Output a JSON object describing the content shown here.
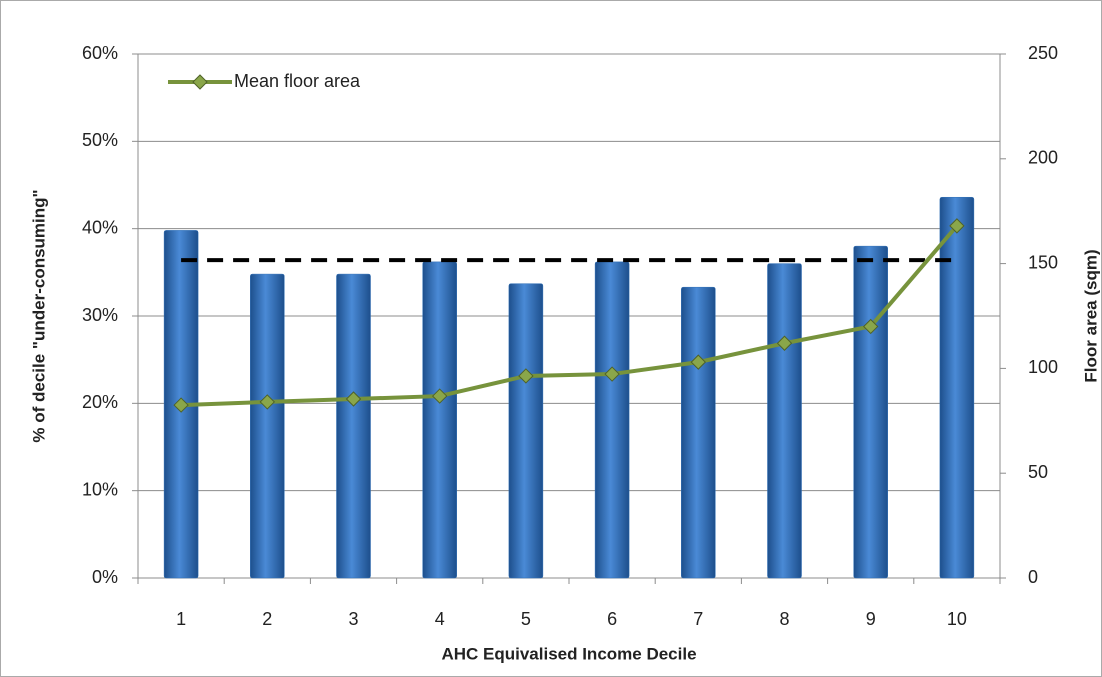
{
  "chart_data": {
    "type": "bar_line",
    "x_label": "AHC Equivalised  Income Decile",
    "y_label": "% of decile \"under-consuming\"",
    "y2_label": "Floor area (sqm)",
    "categories": [
      "1",
      "2",
      "3",
      "4",
      "5",
      "6",
      "7",
      "8",
      "9",
      "10"
    ],
    "series": [
      {
        "type": "bar",
        "color": "#2f6fb6",
        "values": [
          39.8,
          34.8,
          34.8,
          36.2,
          33.7,
          36.2,
          33.3,
          36.0,
          38.0,
          43.6
        ]
      },
      {
        "type": "dashed-line",
        "color": "#000000",
        "values": [
          36.4,
          36.4,
          36.4,
          36.4,
          36.4,
          36.4,
          36.4,
          36.4,
          36.4,
          36.4
        ]
      },
      {
        "type": "line",
        "name": "Mean floor area",
        "color": "#77933c",
        "axis": "y2",
        "values": [
          82.5,
          84,
          85.4,
          86.8,
          96.4,
          97.3,
          103,
          112,
          120,
          168
        ]
      }
    ],
    "ylim": [
      0,
      60
    ],
    "yticks": [
      {
        "value": 0,
        "label": "0%"
      },
      {
        "value": 10,
        "label": "10%"
      },
      {
        "value": 20,
        "label": "20%"
      },
      {
        "value": 30,
        "label": "30%"
      },
      {
        "value": 40,
        "label": "40%"
      },
      {
        "value": 50,
        "label": "50%"
      },
      {
        "value": 60,
        "label": "60%"
      }
    ],
    "y2lim": [
      0,
      250
    ],
    "y2ticks": [
      0,
      50,
      100,
      150,
      200,
      250
    ],
    "grid": true,
    "legend": "top-left"
  }
}
